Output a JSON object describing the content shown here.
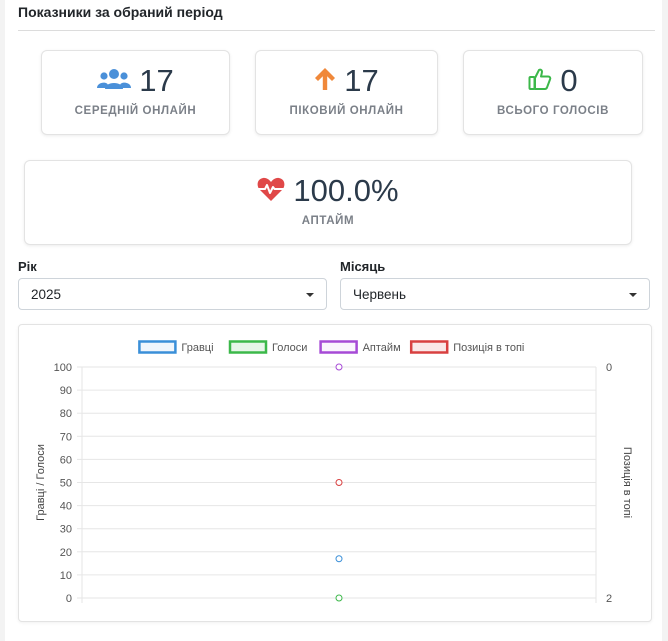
{
  "section_title": "Показники за обраний період",
  "stats": {
    "avg_online": {
      "value": "17",
      "label": "СЕРЕДНІЙ ОНЛАЙН",
      "icon": "users-icon",
      "color": "#4a90d9"
    },
    "peak_online": {
      "value": "17",
      "label": "ПІКОВИЙ ОНЛАЙН",
      "icon": "arrow-up-icon",
      "color": "#f0883a"
    },
    "total_votes": {
      "value": "0",
      "label": "ВСЬОГО ГОЛОСІВ",
      "icon": "thumbs-up-icon",
      "color": "#3cb84a"
    },
    "uptime": {
      "value": "100.0%",
      "label": "АПТАЙМ",
      "icon": "heartbeat-icon",
      "color": "#e04848"
    }
  },
  "filters": {
    "year_label": "Рік",
    "year_value": "2025",
    "month_label": "Місяць",
    "month_value": "Червень"
  },
  "chart_data": {
    "type": "scatter",
    "legend": [
      {
        "name": "Гравці",
        "color": "#3a8fd8"
      },
      {
        "name": "Голоси",
        "color": "#3cb84a"
      },
      {
        "name": "Аптайм",
        "color": "#a64ad6"
      },
      {
        "name": "Позиція в топі",
        "color": "#d84040"
      }
    ],
    "legend_position": "top",
    "y_left_label": "Гравці / Голоси",
    "y_right_label": "Позиція в топі",
    "y_left_ticks": [
      "100",
      "90",
      "80",
      "70",
      "60",
      "50",
      "40",
      "30",
      "20",
      "10",
      "0"
    ],
    "y_left_range": [
      0,
      100
    ],
    "y_right_ticks": [
      "0",
      "2"
    ],
    "y_right_range": [
      0,
      2
    ],
    "grid": true,
    "points": [
      {
        "series": "Гравці",
        "axis": "left",
        "y": 17
      },
      {
        "series": "Голоси",
        "axis": "left",
        "y": 0
      },
      {
        "series": "Аптайм",
        "axis": "left",
        "y": 100
      },
      {
        "series": "Позиція в топі",
        "axis": "right",
        "y": 1
      }
    ]
  }
}
